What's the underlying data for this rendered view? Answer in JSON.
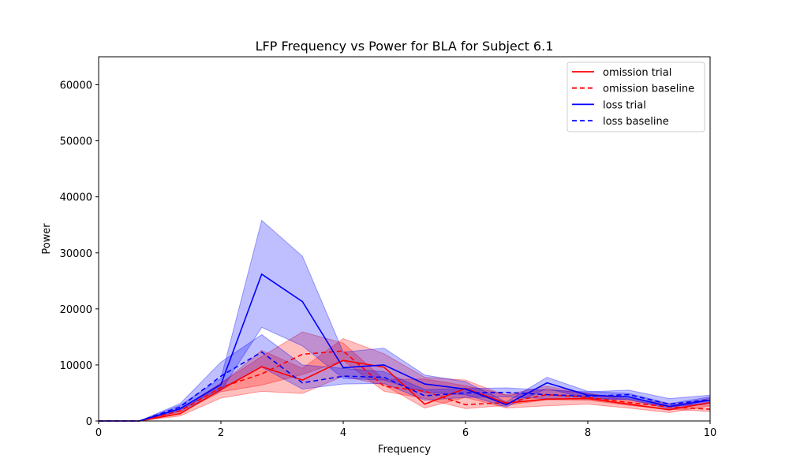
{
  "chart_data": {
    "type": "line",
    "title": "LFP Frequency vs Power for BLA for Subject 6.1",
    "xlabel": "Frequency",
    "ylabel": "Power",
    "xlim": [
      0,
      10
    ],
    "ylim": [
      0,
      65000
    ],
    "x_ticks": [
      "0",
      "2",
      "4",
      "6",
      "8",
      "10"
    ],
    "y_ticks": [
      "0",
      "10000",
      "20000",
      "30000",
      "40000",
      "50000",
      "60000"
    ],
    "grid": false,
    "legend_position": "top-right",
    "x": [
      0,
      0.667,
      1.333,
      2,
      2.667,
      3.333,
      4,
      4.667,
      5.333,
      6,
      6.667,
      7.333,
      8,
      8.667,
      9.333,
      10
    ],
    "series": [
      {
        "name": "omission trial",
        "color": "#ff0000",
        "dash": "solid",
        "values": [
          0,
          0,
          1300,
          5600,
          9700,
          7300,
          10800,
          9600,
          3000,
          5800,
          3200,
          3900,
          4000,
          3000,
          2000,
          3300
        ],
        "band_low": [
          0,
          0,
          900,
          4100,
          5300,
          4900,
          8000,
          6400,
          2300,
          4200,
          2300,
          2700,
          3000,
          2300,
          1500,
          2700
        ],
        "band_high": [
          0,
          0,
          1800,
          6600,
          12600,
          9400,
          14700,
          12000,
          7800,
          7300,
          4500,
          5700,
          4900,
          3700,
          2600,
          4100
        ]
      },
      {
        "name": "omission baseline",
        "color": "#ff0000",
        "dash": "dashed",
        "values": [
          0,
          0,
          1800,
          6000,
          8400,
          11900,
          12500,
          6200,
          5300,
          2900,
          3300,
          4700,
          4200,
          3300,
          2500,
          2100
        ],
        "band_low": [
          0,
          0,
          1500,
          5200,
          6400,
          8300,
          10800,
          5300,
          4000,
          2200,
          2800,
          3800,
          3700,
          2800,
          2100,
          1700
        ],
        "band_high": [
          0,
          0,
          2100,
          6800,
          11500,
          15900,
          13900,
          7400,
          7500,
          6300,
          4700,
          6200,
          4900,
          4000,
          3100,
          2800
        ]
      },
      {
        "name": "loss trial",
        "color": "#0000ff",
        "dash": "solid",
        "values": [
          0,
          0,
          2200,
          6500,
          26200,
          21300,
          9500,
          10000,
          6600,
          5700,
          2900,
          6800,
          4600,
          4300,
          2600,
          3700
        ],
        "band_low": [
          0,
          0,
          1700,
          5400,
          16700,
          13400,
          7600,
          7300,
          5100,
          4700,
          2500,
          5800,
          4000,
          3800,
          2200,
          3100
        ],
        "band_high": [
          0,
          0,
          2800,
          7600,
          35800,
          29400,
          12300,
          13000,
          8200,
          7000,
          3400,
          7800,
          5300,
          4900,
          3100,
          4300
        ]
      },
      {
        "name": "loss baseline",
        "color": "#0000ff",
        "dash": "dashed",
        "values": [
          0,
          0,
          2500,
          8000,
          12300,
          6800,
          8000,
          7800,
          4500,
          5000,
          5100,
          4700,
          4400,
          4700,
          3000,
          3800
        ],
        "band_low": [
          0,
          0,
          2000,
          5800,
          9600,
          5700,
          6600,
          6700,
          3700,
          4200,
          4300,
          4000,
          3900,
          3900,
          2500,
          3200
        ],
        "band_high": [
          0,
          0,
          3100,
          10500,
          15400,
          10000,
          9400,
          8800,
          5600,
          5800,
          5900,
          5500,
          5200,
          5500,
          4000,
          4600
        ]
      }
    ]
  }
}
